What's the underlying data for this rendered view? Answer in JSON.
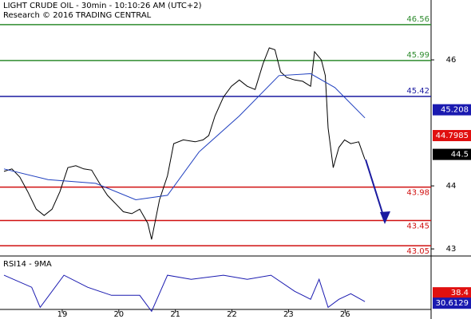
{
  "chart_data": {
    "type": "line",
    "title": "LIGHT CRUDE OIL - 30min - 10:10:26 AM (UTC+2)",
    "subtitle": "Research © 2016 TRADING CENTRAL",
    "xlim": [
      -1.1,
      6.52
    ],
    "xticks": [
      {
        "value": 0,
        "label": "19"
      },
      {
        "value": 1,
        "label": "20"
      },
      {
        "value": 2,
        "label": "21"
      },
      {
        "value": 3,
        "label": "22"
      },
      {
        "value": 4,
        "label": "23"
      },
      {
        "value": 5,
        "label": "26"
      }
    ],
    "ylim": [
      42.9,
      46.95
    ],
    "yticks": [
      43,
      44,
      46
    ],
    "series": [
      {
        "color": "#000000",
        "x": [
          -1.03,
          -0.89,
          -0.75,
          -0.61,
          -0.46,
          -0.32,
          -0.18,
          -0.04,
          0.1,
          0.24,
          0.38,
          0.52,
          0.66,
          0.8,
          0.94,
          1.08,
          1.23,
          1.37,
          1.51,
          1.58,
          1.72,
          1.86,
          1.97,
          2.14,
          2.35,
          2.49,
          2.59,
          2.7,
          2.85,
          2.99,
          3.13,
          3.27,
          3.41,
          3.55,
          3.66,
          3.76,
          3.86,
          3.97,
          4.11,
          4.25,
          4.39,
          4.46,
          4.58,
          4.65,
          4.7,
          4.79,
          4.89,
          4.99,
          5.1,
          5.24,
          5.35
        ],
        "values": [
          44.23,
          44.27,
          44.14,
          43.91,
          43.63,
          43.53,
          43.63,
          43.91,
          44.29,
          44.32,
          44.27,
          44.25,
          44.04,
          43.85,
          43.72,
          43.59,
          43.56,
          43.63,
          43.41,
          43.15,
          43.78,
          44.16,
          44.67,
          44.73,
          44.7,
          44.73,
          44.8,
          45.11,
          45.41,
          45.58,
          45.68,
          45.58,
          45.53,
          45.94,
          46.19,
          46.16,
          45.81,
          45.72,
          45.68,
          45.66,
          45.58,
          46.13,
          46.0,
          45.75,
          44.92,
          44.29,
          44.61,
          44.73,
          44.67,
          44.7,
          44.42
        ]
      },
      {
        "color": "#1f3fbf",
        "x": [
          -1.03,
          -0.25,
          0.59,
          1.3,
          1.86,
          2.42,
          3.13,
          3.83,
          4.39,
          4.82,
          5.35
        ],
        "values": [
          44.27,
          44.1,
          44.04,
          43.78,
          43.85,
          44.54,
          45.11,
          45.75,
          45.78,
          45.56,
          45.08
        ]
      }
    ],
    "levels": [
      {
        "value": 46.56,
        "color": "#2e8b2e"
      },
      {
        "value": 45.99,
        "color": "#2e8b2e"
      },
      {
        "value": 45.42,
        "color": "#1a1aa0"
      },
      {
        "value": 43.98,
        "color": "#d01010"
      },
      {
        "value": 43.45,
        "color": "#d01010"
      },
      {
        "value": 43.05,
        "color": "#d01010"
      }
    ],
    "price_tags": [
      {
        "value": 45.208,
        "color": "#1a1ab0"
      },
      {
        "value": 44.7985,
        "color": "#e01010"
      },
      {
        "value": 44.5,
        "color": "#000000"
      }
    ],
    "rsi": {
      "label": "RSI14 - 9MA",
      "ylim": [
        20,
        63.5
      ],
      "color": "#1a1ab0",
      "x": [
        -1.03,
        -0.54,
        -0.39,
        0.03,
        0.45,
        0.87,
        1.37,
        1.58,
        1.86,
        2.28,
        2.85,
        3.27,
        3.69,
        4.11,
        4.39,
        4.54,
        4.7,
        4.89,
        5.1,
        5.35
      ],
      "values": [
        51.5,
        42.5,
        27.5,
        51.5,
        42.5,
        36.5,
        36.5,
        24.5,
        51.5,
        48.5,
        51.5,
        48.5,
        51.5,
        39.5,
        33.5,
        48.5,
        27.5,
        33.5,
        37.7,
        31.8
      ],
      "tags": [
        {
          "value": 38.4,
          "color": "#e01010"
        },
        {
          "value": 30.6129,
          "color": "#1a1ab0"
        }
      ]
    }
  }
}
